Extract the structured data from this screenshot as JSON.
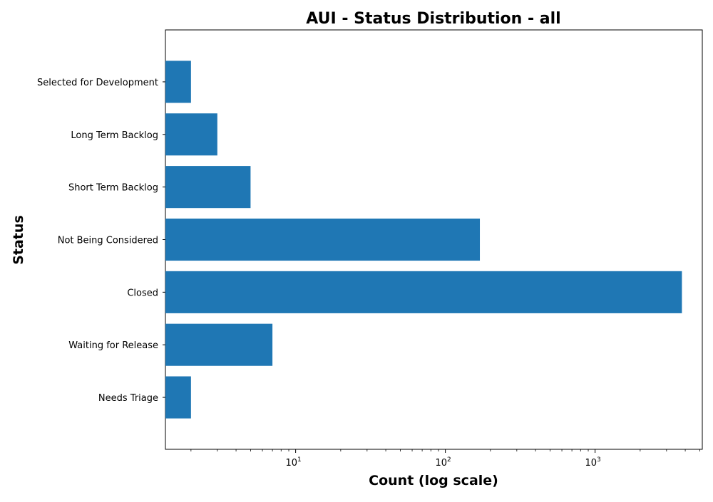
{
  "chart_data": {
    "type": "bar",
    "orientation": "horizontal",
    "title": "AUI - Status Distribution - all",
    "xlabel": "Count (log scale)",
    "ylabel": "Status",
    "x_scale": "log",
    "xlim": [
      1.35,
      5200
    ],
    "x_ticks": [
      {
        "base": "10",
        "exp": "1",
        "value": 10
      },
      {
        "base": "10",
        "exp": "2",
        "value": 100
      },
      {
        "base": "10",
        "exp": "3",
        "value": 1000
      }
    ],
    "categories": [
      "Needs Triage",
      "Waiting for Release",
      "Closed",
      "Not Being Considered",
      "Short Term Backlog",
      "Long Term Backlog",
      "Selected for Development"
    ],
    "values": [
      2,
      7,
      3800,
      170,
      5,
      3,
      2
    ],
    "grid": false,
    "legend": "none",
    "bar_color": "#1f77b4"
  }
}
